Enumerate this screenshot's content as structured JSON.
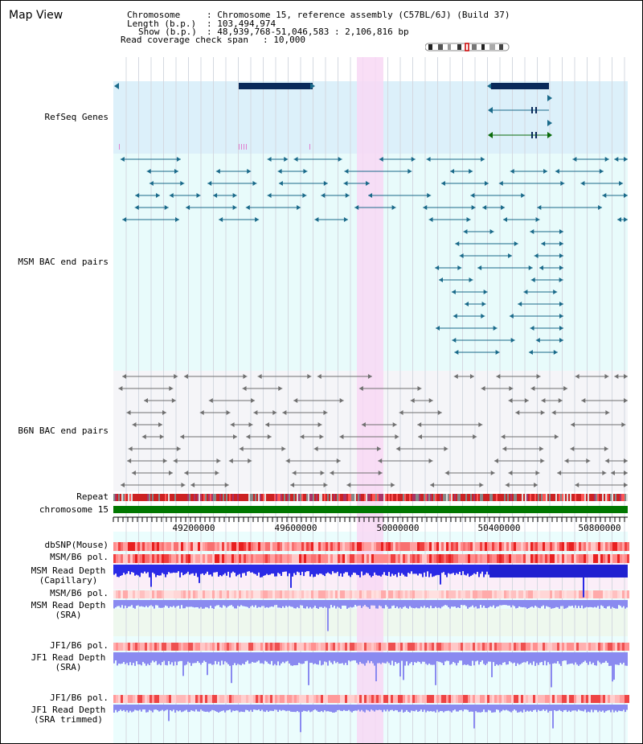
{
  "page": {
    "title": "Map View"
  },
  "header": {
    "chromosome_key": "Chromosome",
    "chromosome_val": ": Chromosome 15, reference assembly (C57BL/6J) (Build 37)",
    "length_key": "Length (b.p.)",
    "length_val": ": 103,494,974",
    "show_key": "Show (b.p.)",
    "show_val": ": 48,939,768-51,046,583 : 2,106,816 bp",
    "coverage_key": "Read coverage check span",
    "coverage_val": ": 10,000"
  },
  "axis": {
    "ticks": [
      "49200000",
      "49600000",
      "50000000",
      "50400000",
      "50800000"
    ]
  },
  "tracks": {
    "refseq": "RefSeq Genes",
    "msm_bac": "MSM BAC end pairs",
    "b6n_bac": "B6N BAC end pairs",
    "repeat": "Repeat",
    "chromosome": "chromosome 15",
    "dbsnp": "dbSNP(Mouse)",
    "msm_b6_pol_1": "MSM/B6 pol.",
    "msm_depth_cap_1": "MSM Read Depth",
    "msm_depth_cap_2": "(Capillary)",
    "msm_b6_pol_2": "MSM/B6 pol.",
    "msm_depth_sra_1": "MSM Read Depth",
    "msm_depth_sra_2": "(SRA)",
    "jf1_b6_pol_1": "JF1/B6 pol.",
    "jf1_depth_sra_1": "JF1 Read Depth",
    "jf1_depth_sra_2": "(SRA)",
    "jf1_b6_pol_2": "JF1/B6 pol.",
    "jf1_depth_trim_1": "JF1 Read Depth",
    "jf1_depth_trim_2": "(SRA trimmed)"
  },
  "colors": {
    "refseq_bg": "#dcf0fa",
    "msm_bg": "#e8fbfb",
    "b6n_bg": "#f5f5f8",
    "highlight": "#f8d8f4",
    "gene": "#0a2a5a",
    "msm_feature": "#1a6a8a",
    "b6n_feature": "#707070",
    "chromosome_bar": "#007700",
    "depth_blue": "#2a2ae6",
    "depth_light": "#8a8af0",
    "label_blue": "#000080",
    "label_orange": "#e68a00"
  }
}
